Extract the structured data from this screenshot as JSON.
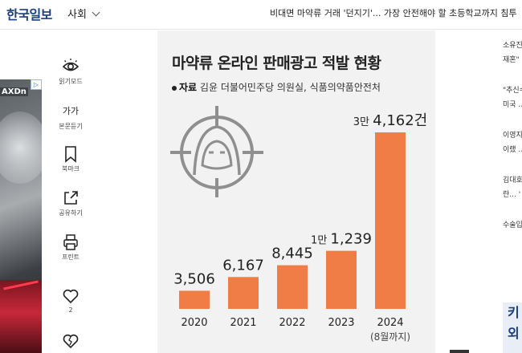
{
  "header": {
    "logo": "한국일보",
    "section": "사회",
    "headline": "비대면 마약류 거래 '던지기'... 가장 안전해야 할 초등학교까지 침투"
  },
  "ad": {
    "text": "AXDn",
    "badge": "▷"
  },
  "tools": [
    {
      "label": "읽기모드",
      "icon": "eye-icon"
    },
    {
      "label": "본문듣기",
      "icon": "text-size-icon",
      "glyph": "가가"
    },
    {
      "label": "북마크",
      "icon": "bookmark-icon"
    },
    {
      "label": "공유하기",
      "icon": "share-icon"
    },
    {
      "label": "프린트",
      "icon": "print-icon"
    },
    {
      "label": "2",
      "icon": "heart-icon"
    },
    {
      "label": "",
      "icon": "broken-heart-icon"
    }
  ],
  "infographic": {
    "title": "마약류 온라인 판매광고 적발 현황",
    "source_label": "자료",
    "source_text": "김윤 더불어민주당 의원실, 식품의약품안전처",
    "bar_color": "#ef7d45",
    "hooded_figure_icon": "hooded-figure-target-icon"
  },
  "chart_data": {
    "type": "bar",
    "title": "마약류 온라인 판매광고 적발 현황",
    "categories": [
      "2020",
      "2021",
      "2022",
      "2023",
      "2024"
    ],
    "category_notes": [
      "",
      "",
      "",
      "",
      "(8월까지)"
    ],
    "values": [
      3506,
      6167,
      8445,
      11239,
      34162
    ],
    "value_labels": [
      {
        "prefix": "",
        "main": "3,506"
      },
      {
        "prefix": "",
        "main": "6,167"
      },
      {
        "prefix": "",
        "main": "8,445"
      },
      {
        "prefix": "1만",
        "main": "1,239"
      },
      {
        "prefix": "3만",
        "main": "4,162건"
      }
    ],
    "unit": "건",
    "series": [
      {
        "name": "",
        "values": [
          3506,
          6167,
          8445,
          11239,
          34162
        ]
      }
    ],
    "grid": false,
    "legend": "none"
  },
  "sidebar": {
    "items": [
      {
        "text": "소유진"
      },
      {
        "text": "재혼\""
      },
      {
        "text": "\"추신수"
      },
      {
        "text": "미국 ..."
      },
      {
        "text": "이영지"
      },
      {
        "text": "이랬 ..."
      },
      {
        "text": "김대호"
      },
      {
        "text": "란... '"
      },
      {
        "text": "수술입"
      }
    ],
    "box_text": "키 외"
  }
}
